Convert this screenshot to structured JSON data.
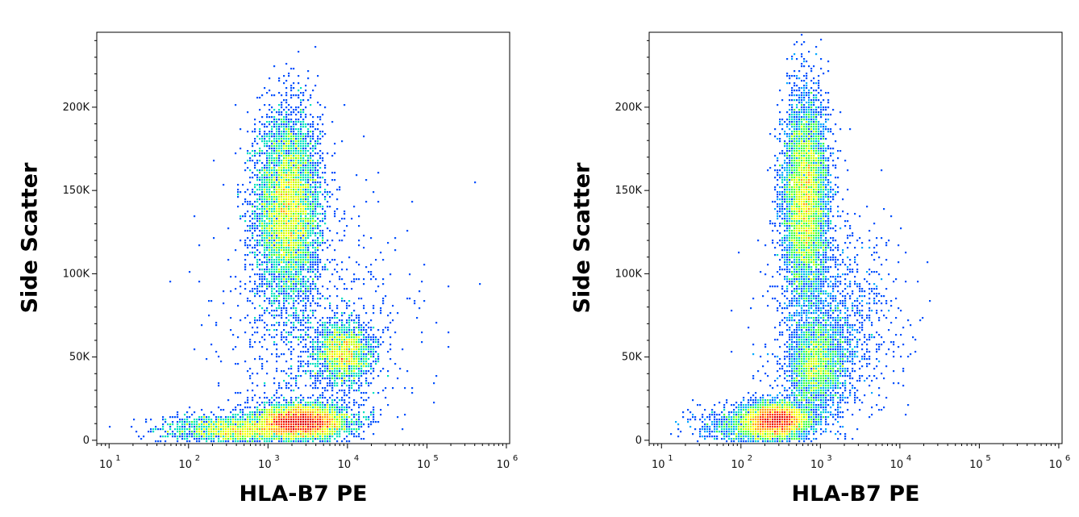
{
  "chart_data": [
    {
      "type": "scatter",
      "style": "density dot plot",
      "xlabel": "HLA-B7 PE",
      "ylabel": "Side Scatter",
      "x_scale": "log",
      "xlim": [
        7,
        1100000
      ],
      "ylim": [
        -2000,
        245000
      ],
      "x_ticks": [
        {
          "base": "10",
          "exp": "1",
          "value": 10
        },
        {
          "base": "10",
          "exp": "2",
          "value": 100
        },
        {
          "base": "10",
          "exp": "3",
          "value": 1000
        },
        {
          "base": "10",
          "exp": "4",
          "value": 10000
        },
        {
          "base": "10",
          "exp": "5",
          "value": 100000
        },
        {
          "base": "10",
          "exp": "6",
          "value": 1000000
        }
      ],
      "y_ticks": [
        {
          "label": "0",
          "value": 0
        },
        {
          "label": "50K",
          "value": 50000
        },
        {
          "label": "100K",
          "value": 100000
        },
        {
          "label": "150K",
          "value": 150000
        },
        {
          "label": "200K",
          "value": 200000
        }
      ],
      "populations": [
        {
          "x_center": 1800,
          "y_center": 140000,
          "x_spread_decades": 0.2,
          "y_spread": 28000,
          "density": 0.38
        },
        {
          "x_center": 2700,
          "y_center": 11000,
          "x_spread_decades": 0.28,
          "y_spread": 5000,
          "density": 0.32
        },
        {
          "x_center": 9000,
          "y_center": 52000,
          "x_spread_decades": 0.18,
          "y_spread": 9000,
          "density": 0.12
        },
        {
          "x_center": 400,
          "y_center": 6000,
          "x_spread_decades": 0.45,
          "y_spread": 4000,
          "density": 0.12
        },
        {
          "x_center": 4000,
          "y_center": 60000,
          "x_spread_decades": 0.6,
          "y_spread": 40000,
          "density": 0.06
        }
      ]
    },
    {
      "type": "scatter",
      "style": "density dot plot",
      "xlabel": "HLA-B7 PE",
      "ylabel": "Side Scatter",
      "x_scale": "log",
      "xlim": [
        7,
        1100000
      ],
      "ylim": [
        -2000,
        245000
      ],
      "x_ticks": [
        {
          "base": "10",
          "exp": "1",
          "value": 10
        },
        {
          "base": "10",
          "exp": "2",
          "value": 100
        },
        {
          "base": "10",
          "exp": "3",
          "value": 1000
        },
        {
          "base": "10",
          "exp": "4",
          "value": 10000
        },
        {
          "base": "10",
          "exp": "5",
          "value": 100000
        },
        {
          "base": "10",
          "exp": "6",
          "value": 1000000
        }
      ],
      "y_ticks": [
        {
          "label": "0",
          "value": 0
        },
        {
          "label": "50K",
          "value": 50000
        },
        {
          "label": "100K",
          "value": 100000
        },
        {
          "label": "150K",
          "value": 150000
        },
        {
          "label": "200K",
          "value": 200000
        }
      ],
      "populations": [
        {
          "x_center": 650,
          "y_center": 145000,
          "x_spread_decades": 0.14,
          "y_spread": 30000,
          "density": 0.4
        },
        {
          "x_center": 280,
          "y_center": 12000,
          "x_spread_decades": 0.2,
          "y_spread": 5000,
          "density": 0.3
        },
        {
          "x_center": 900,
          "y_center": 45000,
          "x_spread_decades": 0.17,
          "y_spread": 14000,
          "density": 0.14
        },
        {
          "x_center": 150,
          "y_center": 8000,
          "x_spread_decades": 0.35,
          "y_spread": 6000,
          "density": 0.08
        },
        {
          "x_center": 1500,
          "y_center": 70000,
          "x_spread_decades": 0.4,
          "y_spread": 30000,
          "density": 0.08
        }
      ]
    }
  ],
  "colors": {
    "density_scale": [
      "#0000ff",
      "#0050ff",
      "#00a8ff",
      "#00e0c0",
      "#40ff40",
      "#c8ff00",
      "#ffff00",
      "#ffa000",
      "#ff3000",
      "#e00000"
    ]
  }
}
